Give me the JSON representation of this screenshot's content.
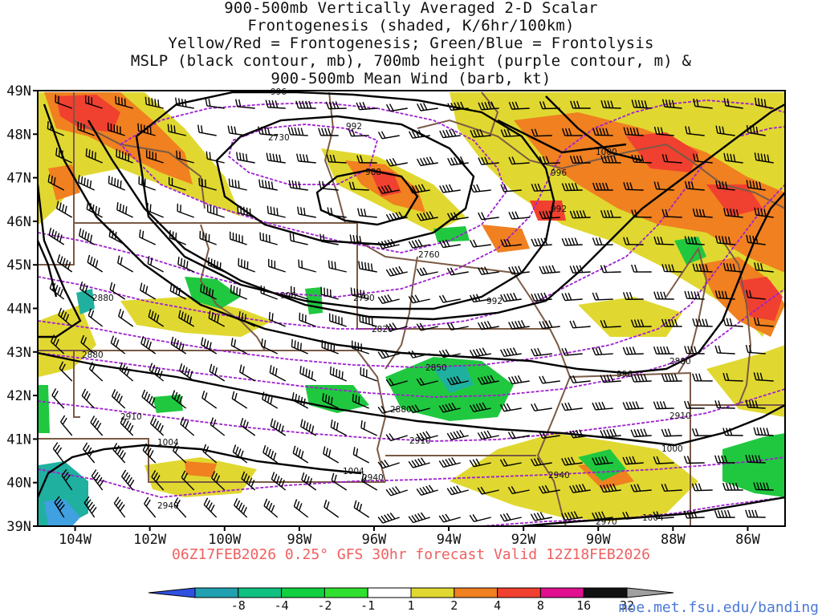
{
  "title_lines": [
    "900-500mb Vertically Averaged 2-D Scalar",
    "Frontogenesis (shaded, K/6hr/100km)",
    "Yellow/Red = Frontogenesis;  Green/Blue = Frontolysis",
    "MSLP (black contour, mb), 700mb height (purple contour, m) &",
    "900-500mb Mean Wind (barb, kt)"
  ],
  "subtitle": "06Z17FEB2026 0.25° GFS 30hr forecast Valid 12Z18FEB2026",
  "credit": "moe.met.fsu.edu/banding",
  "map": {
    "lon_range": [
      -105,
      -85
    ],
    "lat_range": [
      39,
      49
    ],
    "lat_ticks": [
      "39N",
      "40N",
      "41N",
      "42N",
      "43N",
      "44N",
      "45N",
      "46N",
      "47N",
      "48N",
      "49N"
    ],
    "lon_ticks": [
      "104W",
      "102W",
      "100W",
      "98W",
      "96W",
      "94W",
      "92W",
      "90W",
      "88W",
      "86W"
    ],
    "colors": {
      "mslp": "#000000",
      "height700": "#a020d0",
      "border": "#7a5a45",
      "barb": "#000000"
    },
    "mslp_labels": [
      "996",
      "992",
      "988",
      "992",
      "996",
      "1000",
      "996",
      "992",
      "996",
      "1004",
      "1004",
      "1000",
      "1004"
    ],
    "height_labels": [
      "2730",
      "2760",
      "2790",
      "2820",
      "2850",
      "2880",
      "2880",
      "2880",
      "2910",
      "2910",
      "2910",
      "2940",
      "2940",
      "2970",
      "2880"
    ]
  },
  "colorbar": {
    "labels": [
      "-8",
      "-4",
      "-2",
      "-1",
      "1",
      "2",
      "4",
      "8",
      "16",
      "32"
    ],
    "colors": [
      "#3050e0",
      "#20a0b0",
      "#10c080",
      "#10d040",
      "#30e030",
      "#ffffff",
      "#e0d830",
      "#f08020",
      "#f04030",
      "#e01090",
      "#111111",
      "#a0a0a0"
    ]
  }
}
